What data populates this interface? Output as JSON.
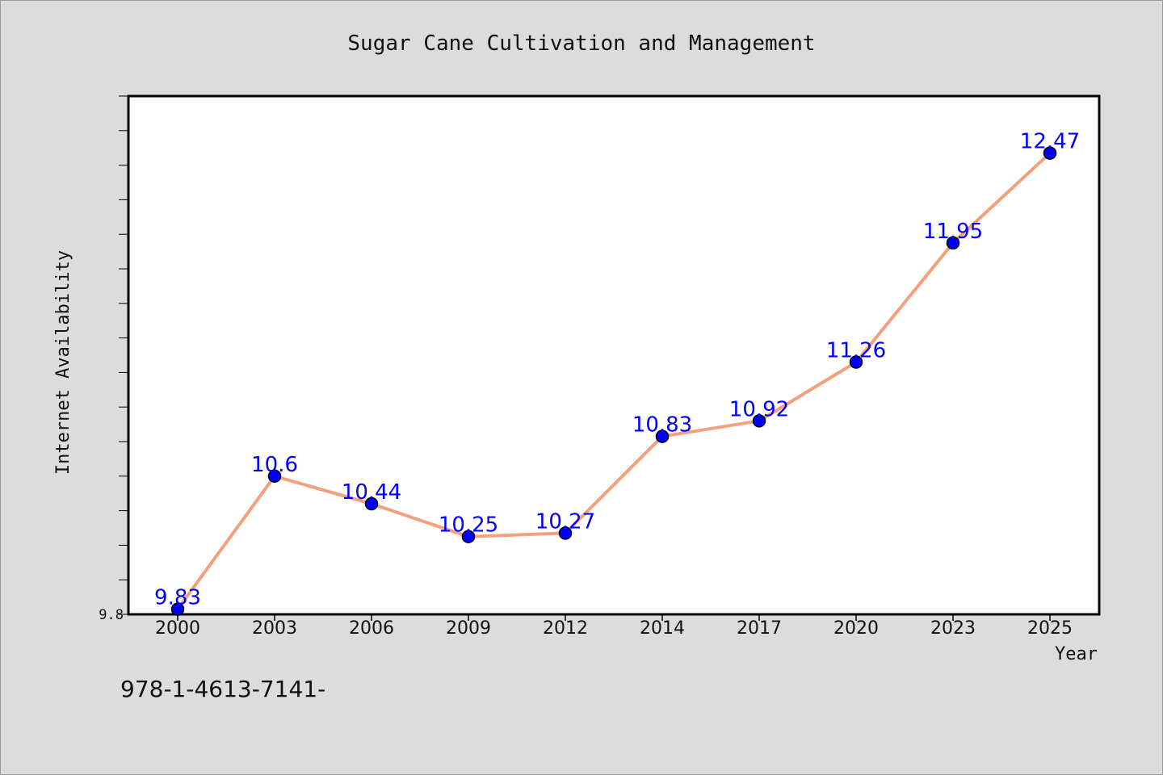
{
  "chart_data": {
    "type": "line",
    "title": "Sugar Cane Cultivation and Management",
    "xlabel": "Year",
    "ylabel": "Internet Availability",
    "categories": [
      "2000",
      "2003",
      "2006",
      "2009",
      "2012",
      "2014",
      "2017",
      "2020",
      "2023",
      "2025"
    ],
    "series": [
      {
        "values": [
          9.83,
          10.6,
          10.44,
          10.25,
          10.27,
          10.83,
          10.92,
          11.26,
          11.95,
          12.47
        ],
        "labels": [
          "9.83",
          "10.6",
          "10.44",
          "10.25",
          "10.27",
          "10.83",
          "10.92",
          "11.26",
          "11.95",
          "12.47"
        ]
      }
    ],
    "ylim": [
      9.8,
      12.8
    ],
    "ytick_labels": [
      "9.8"
    ],
    "grid": false,
    "legend": "none"
  },
  "footer_text": "978-1-4613-7141-",
  "colors": {
    "background": "#dcdcdc",
    "plot_background": "#ffffff",
    "line": "#f4a07e",
    "marker": "#0000ff",
    "data_label": "#0000ff",
    "axis": "#000000"
  }
}
